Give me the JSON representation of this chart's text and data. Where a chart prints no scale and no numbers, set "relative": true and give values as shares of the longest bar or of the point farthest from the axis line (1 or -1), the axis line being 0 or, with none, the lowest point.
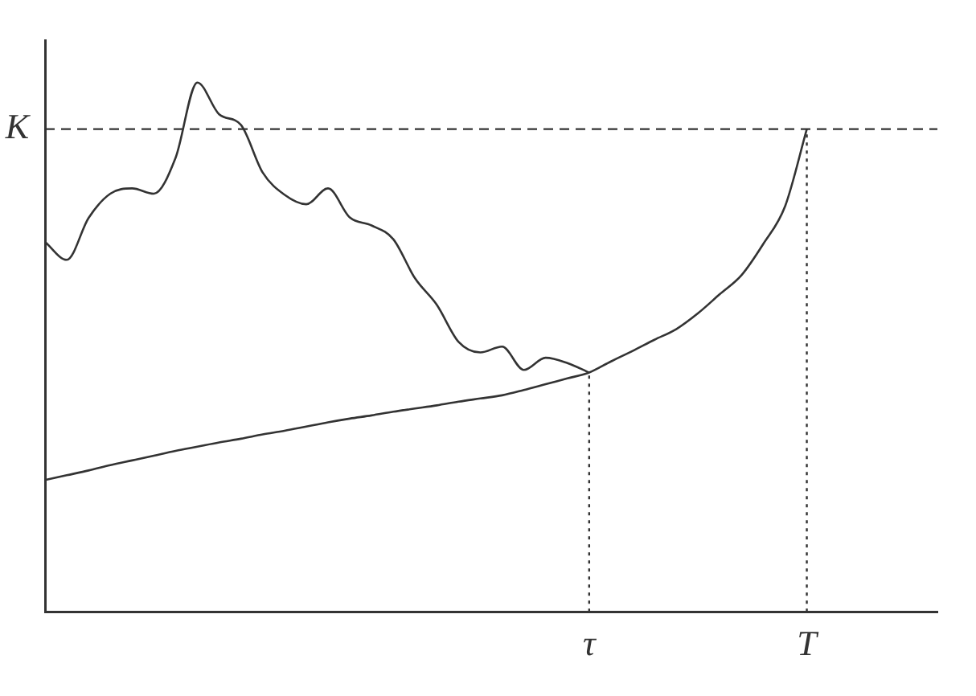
{
  "chart_data": {
    "type": "line",
    "relative": true,
    "legend": false,
    "grid": false,
    "marker": "none",
    "line_style": "solid",
    "categories": [
      null,
      null,
      null,
      null,
      null,
      null,
      null,
      null,
      null,
      null,
      null,
      null,
      null,
      null,
      null,
      null,
      null,
      null,
      null,
      null,
      null,
      null,
      null,
      null,
      null,
      "τ",
      null,
      null,
      null,
      null,
      null,
      null,
      null,
      null,
      null,
      "T",
      null,
      null,
      null,
      null,
      null,
      null
    ],
    "series": [
      {
        "color": "#333333",
        "values": [
          0.699,
          0.665,
          0.744,
          0.79,
          0.8,
          0.79,
          0.858,
          1,
          0.94,
          0.92,
          0.83,
          0.788,
          0.77,
          0.8,
          0.745,
          0.73,
          0.704,
          0.63,
          0.58,
          0.51,
          0.49,
          0.501,
          0.457,
          0.48,
          0.47,
          0.452,
          null,
          null,
          null,
          null,
          null,
          null,
          null,
          null,
          null,
          null,
          null,
          null,
          null,
          null,
          null,
          null
        ]
      },
      {
        "color": "#333333",
        "values": [
          0.249,
          0.258,
          0.267,
          0.277,
          0.286,
          0.295,
          0.304,
          0.312,
          0.32,
          0.327,
          0.335,
          0.342,
          0.35,
          0.358,
          0.365,
          0.371,
          0.378,
          0.384,
          0.39,
          0.397,
          0.403,
          0.409,
          0.419,
          0.43,
          0.441,
          0.452,
          0.473,
          0.493,
          0.514,
          0.534,
          0.564,
          0.6,
          0.636,
          0.695,
          0.766,
          0.912,
          null,
          null,
          null,
          null,
          null,
          null
        ]
      }
    ],
    "ref_lines": [
      {
        "axis": "y",
        "value": 0.912,
        "label": "K",
        "line_style": "dashed",
        "color": "#333333"
      },
      {
        "axis": "x",
        "value": "τ",
        "line_style": "dotted",
        "color": "#333333"
      },
      {
        "axis": "x",
        "value": "T",
        "line_style": "dotted",
        "color": "#333333"
      }
    ]
  }
}
